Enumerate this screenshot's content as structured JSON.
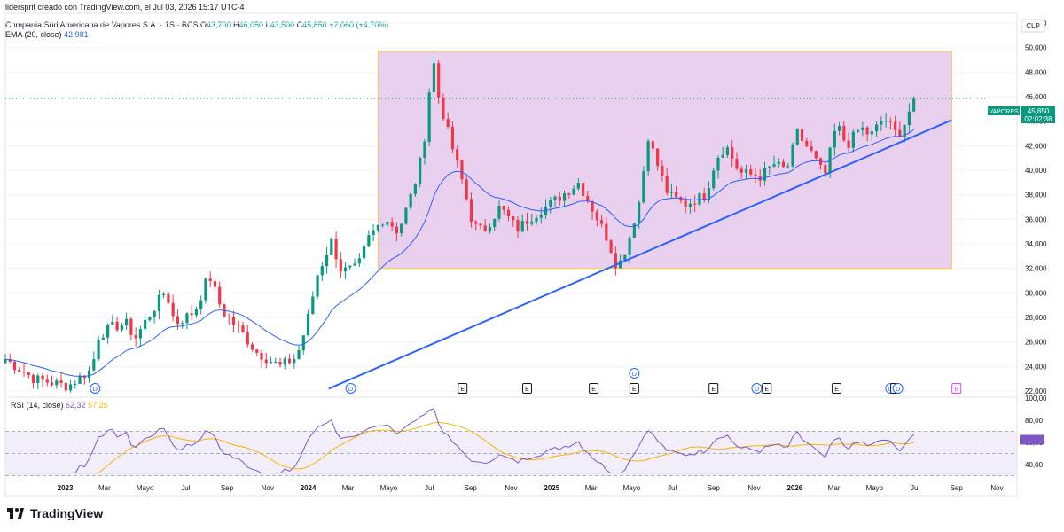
{
  "header": {
    "created_by": "lidersprit creado con TradingView.com, el Jul 03, 2026 15:17 UTC-4",
    "symbol": "Compania Sud Americana de Vapores S.A. · 1S · BCS",
    "ohlc": [
      {
        "label": "O",
        "value": "43,700"
      },
      {
        "label": "H",
        "value": "46,050"
      },
      {
        "label": "L",
        "value": "43,500"
      },
      {
        "label": "C",
        "value": "45,850"
      }
    ],
    "change": "+2,060 (+4,70%)",
    "ema_label": "EMA (20, close)",
    "ema_value": "42,981"
  },
  "price_axis": {
    "currency": "CLP",
    "ticks": [
      "52,000",
      "50,000",
      "48,000",
      "46,000",
      "44,000",
      "42,000",
      "40,000",
      "38,000",
      "36,000",
      "34,000",
      "32,000",
      "30,000",
      "28,000",
      "26,000",
      "24,000",
      "22,000"
    ],
    "tag_symbol": "VAPORES",
    "tag_price": "45,850",
    "tag_time": "02:02:38"
  },
  "rsi": {
    "label": "RSI (14, close)",
    "value1": "62,32",
    "value2": "57,25",
    "ticks": [
      "100,00",
      "80,00",
      "60,00",
      "40,00"
    ]
  },
  "time_axis": {
    "labels": [
      "2023",
      "Mar",
      "Mayo",
      "Jul",
      "Sep",
      "Nov",
      "2024",
      "Mar",
      "Mayo",
      "Jul",
      "Sep",
      "Nov",
      "2025",
      "Mar",
      "Mayo",
      "Jul",
      "Sep",
      "Nov",
      "2026",
      "Mar",
      "Mayo",
      "Jul",
      "Sep",
      "Nov"
    ],
    "bold": [
      "2023",
      "2024",
      "2025",
      "2026"
    ]
  },
  "event_markers": [
    {
      "t": "D",
      "date": "2023-02-15"
    },
    {
      "t": "D",
      "date": "2024-03-05"
    },
    {
      "t": "E",
      "date": "2024-08-20"
    },
    {
      "t": "E",
      "date": "2024-11-25"
    },
    {
      "t": "E",
      "date": "2025-03-05"
    },
    {
      "t": "E",
      "date": "2025-05-05"
    },
    {
      "t": "D",
      "date": "2025-05-05",
      "row": 2
    },
    {
      "t": "E",
      "date": "2025-09-01"
    },
    {
      "t": "D",
      "date": "2025-11-05"
    },
    {
      "t": "E",
      "date": "2025-11-20"
    },
    {
      "t": "E",
      "date": "2026-03-05"
    },
    {
      "t": "D",
      "date": "2026-05-25"
    },
    {
      "t": "E",
      "date": "2026-06-01"
    },
    {
      "t": "D",
      "date": "2026-06-05"
    },
    {
      "t": "E",
      "date": "2026-09-01",
      "future": true
    }
  ],
  "colors": {
    "up": "#089981",
    "down": "#f23645",
    "ema": "#2962ff",
    "trendline": "#2962ff",
    "zone_fill": "#e1bee7",
    "zone_border": "#f5d033",
    "rsi_line": "#7e57c2",
    "rsi_ma": "#f7b500",
    "rsi_band": "#ede7f6",
    "future_event": "#e040fb"
  },
  "chart_data": {
    "type": "candlestick",
    "timeframe": "weekly",
    "ylim": [
      21500,
      52800
    ],
    "y_scale": "linear",
    "drawings": {
      "zone": {
        "date_start": "2024-04-15",
        "date_end": "2026-08-25",
        "price_low": 32000,
        "price_high": 49700
      },
      "trendline": {
        "start": {
          "date": "2024-02-01",
          "price": 22200
        },
        "end": {
          "date": "2026-08-25",
          "price": 44100
        }
      },
      "last_price_line": 45850
    },
    "anchors": [
      {
        "date": "2022-10-03",
        "close": 24600
      },
      {
        "date": "2022-11-15",
        "close": 23000
      },
      {
        "date": "2023-01-05",
        "close": 22400
      },
      {
        "date": "2023-02-10",
        "close": 23800
      },
      {
        "date": "2023-02-20",
        "close": 26500
      },
      {
        "date": "2023-03-10",
        "close": 27200
      },
      {
        "date": "2023-04-05",
        "close": 27500
      },
      {
        "date": "2023-04-15",
        "close": 26200
      },
      {
        "date": "2023-05-05",
        "close": 28000
      },
      {
        "date": "2023-06-01",
        "close": 30200
      },
      {
        "date": "2023-06-15",
        "close": 27500
      },
      {
        "date": "2023-07-15",
        "close": 28500
      },
      {
        "date": "2023-08-05",
        "close": 31500
      },
      {
        "date": "2023-08-25",
        "close": 28500
      },
      {
        "date": "2023-09-20",
        "close": 27000
      },
      {
        "date": "2023-10-15",
        "close": 25200
      },
      {
        "date": "2023-11-20",
        "close": 24000
      },
      {
        "date": "2023-12-15",
        "close": 24800
      },
      {
        "date": "2023-12-30",
        "close": 27500
      },
      {
        "date": "2024-01-15",
        "close": 31500
      },
      {
        "date": "2024-02-05",
        "close": 34200
      },
      {
        "date": "2024-02-20",
        "close": 31800
      },
      {
        "date": "2024-03-15",
        "close": 32000
      },
      {
        "date": "2024-04-01",
        "close": 34500
      },
      {
        "date": "2024-04-25",
        "close": 36200
      },
      {
        "date": "2024-05-15",
        "close": 35000
      },
      {
        "date": "2024-06-01",
        "close": 37500
      },
      {
        "date": "2024-06-15",
        "close": 40000
      },
      {
        "date": "2024-06-28",
        "close": 44000
      },
      {
        "date": "2024-07-05",
        "close": 49800
      },
      {
        "date": "2024-07-15",
        "close": 46000
      },
      {
        "date": "2024-08-01",
        "close": 42500
      },
      {
        "date": "2024-08-20",
        "close": 39000
      },
      {
        "date": "2024-09-05",
        "close": 35500
      },
      {
        "date": "2024-09-20",
        "close": 35000
      },
      {
        "date": "2024-10-15",
        "close": 37000
      },
      {
        "date": "2024-11-10",
        "close": 35200
      },
      {
        "date": "2024-12-01",
        "close": 36200
      },
      {
        "date": "2025-01-05",
        "close": 37500
      },
      {
        "date": "2025-02-10",
        "close": 39000
      },
      {
        "date": "2025-02-28",
        "close": 37200
      },
      {
        "date": "2025-03-25",
        "close": 34500
      },
      {
        "date": "2025-04-10",
        "close": 32000
      },
      {
        "date": "2025-04-25",
        "close": 34000
      },
      {
        "date": "2025-05-15",
        "close": 38000
      },
      {
        "date": "2025-05-25",
        "close": 43000
      },
      {
        "date": "2025-06-05",
        "close": 41000
      },
      {
        "date": "2025-06-25",
        "close": 38000
      },
      {
        "date": "2025-07-20",
        "close": 37200
      },
      {
        "date": "2025-08-20",
        "close": 38000
      },
      {
        "date": "2025-09-05",
        "close": 41000
      },
      {
        "date": "2025-09-20",
        "close": 42000
      },
      {
        "date": "2025-10-10",
        "close": 39800
      },
      {
        "date": "2025-11-10",
        "close": 39500
      },
      {
        "date": "2025-12-01",
        "close": 40500
      },
      {
        "date": "2025-12-20",
        "close": 40000
      },
      {
        "date": "2026-01-05",
        "close": 43000
      },
      {
        "date": "2026-01-25",
        "close": 41500
      },
      {
        "date": "2026-02-15",
        "close": 39500
      },
      {
        "date": "2026-03-05",
        "close": 43800
      },
      {
        "date": "2026-03-20",
        "close": 42000
      },
      {
        "date": "2026-04-10",
        "close": 43500
      },
      {
        "date": "2026-04-25",
        "close": 42800
      },
      {
        "date": "2026-05-15",
        "close": 44300
      },
      {
        "date": "2026-06-05",
        "close": 42800
      },
      {
        "date": "2026-06-15",
        "close": 43800
      },
      {
        "date": "2026-06-29",
        "close": 45850
      }
    ]
  }
}
